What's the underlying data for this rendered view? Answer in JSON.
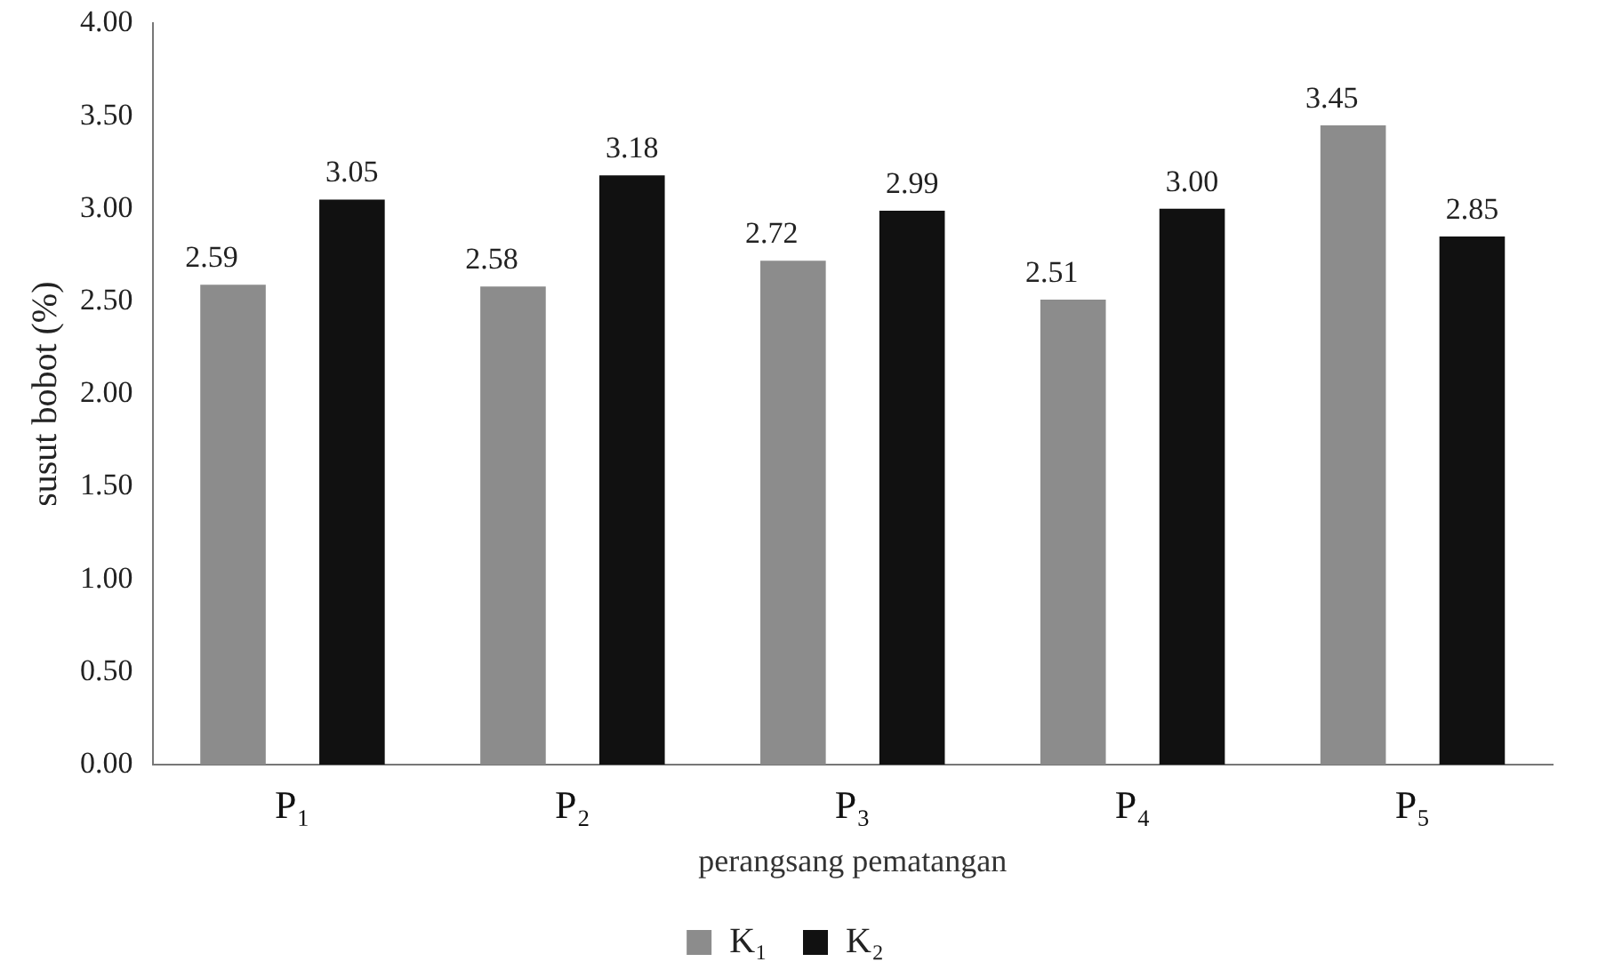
{
  "chart_data": {
    "type": "bar",
    "xlabel": "perangsang pematangan",
    "ylabel": "susut bobot (%)",
    "categories": [
      "P₁",
      "P₂",
      "P₃",
      "P₄",
      "P₅"
    ],
    "series": [
      {
        "name": "K₁",
        "color": "#8c8c8c",
        "values": [
          2.59,
          2.58,
          2.72,
          2.51,
          3.45
        ],
        "value_labels": [
          "2.59",
          "2.58",
          "2.72",
          "2.51",
          "3.45"
        ]
      },
      {
        "name": "K₂",
        "color": "#111111",
        "values": [
          3.05,
          3.18,
          2.99,
          3.0,
          2.85
        ],
        "value_labels": [
          "3.05",
          "3.18",
          "2.99",
          "3.00",
          "2.85"
        ]
      }
    ],
    "ylim": [
      0,
      4
    ],
    "yticks": [
      {
        "value": 0,
        "label": "0.00"
      },
      {
        "value": 0.5,
        "label": "0.50"
      },
      {
        "value": 1,
        "label": "1.00"
      },
      {
        "value": 1.5,
        "label": "1.50"
      },
      {
        "value": 2,
        "label": "2.00"
      },
      {
        "value": 2.5,
        "label": "2.50"
      },
      {
        "value": 3,
        "label": "3.00"
      },
      {
        "value": 3.5,
        "label": "3.50"
      },
      {
        "value": 4,
        "label": "4.00"
      }
    ],
    "grid": false,
    "legend": "bottom"
  }
}
